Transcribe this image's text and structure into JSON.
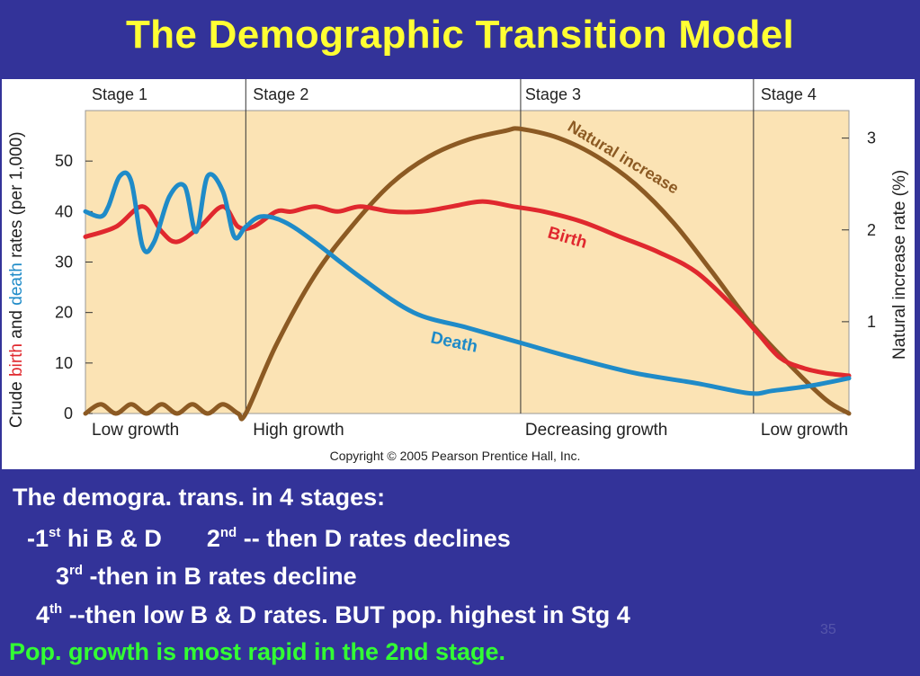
{
  "slide": {
    "title": "The Demographic Transition Model",
    "bullets": {
      "b1": "The demogra. trans. in 4 stages:",
      "b2a": "-1",
      "b2a_sup": "st",
      "b2b": " hi B & D",
      "b2c": "2",
      "b2c_sup": "nd",
      "b2d": " -- then D rates declines",
      "b3a": "3",
      "b3a_sup": "rd",
      "b3b": " -then in B rates decline",
      "b4a": "4",
      "b4a_sup": "th",
      "b4b": " --then  low B & D rates.   BUT pop. highest in Stg 4",
      "b5": "Pop. growth is most rapid in the 2nd stage."
    },
    "slide_number": "35",
    "colors": {
      "background": "#333399",
      "title": "#ffff33",
      "highlight": "#33ff33",
      "plot_bg": "#fbe3b4",
      "birth": "#e0282e",
      "death": "#1f8bc8",
      "natural_increase": "#8c5a23"
    }
  },
  "chart_data": {
    "type": "line",
    "stages": [
      "Stage 1",
      "Stage 2",
      "Stage 3",
      "Stage 4"
    ],
    "growth_labels": [
      "Low growth",
      "High growth",
      "Decreasing growth",
      "Low growth"
    ],
    "copyright": "Copyright © 2005 Pearson Prentice Hall, Inc.",
    "ylabel_left": {
      "part1": "Crude ",
      "birth": "birth",
      "part2": " and ",
      "death": "death",
      "part3": " rates (per 1,000)"
    },
    "ylabel_right": "Natural increase rate (%)",
    "ylim_left": [
      0,
      60
    ],
    "yticks_left": [
      0,
      10,
      20,
      30,
      40,
      50
    ],
    "ylim_right": [
      0,
      3.3
    ],
    "yticks_right": [
      1,
      2,
      3
    ],
    "x_range": [
      0,
      100
    ],
    "stage_boundaries": [
      21,
      57,
      87.5
    ],
    "series": [
      {
        "name": "Birth",
        "axis": "left",
        "x": [
          0,
          4,
          7.5,
          10,
          12,
          15,
          18,
          20,
          22,
          25,
          27,
          30,
          33,
          36,
          40,
          44,
          48,
          52,
          56,
          60,
          65,
          70,
          75,
          80,
          85,
          88,
          91,
          94,
          97,
          100
        ],
        "y": [
          35,
          37,
          41,
          36,
          34,
          37,
          41,
          37,
          37,
          40,
          40,
          41,
          40,
          41,
          40,
          40,
          41,
          42,
          41,
          40,
          38,
          35,
          32,
          28,
          21,
          16,
          11,
          9,
          8,
          7.5
        ]
      },
      {
        "name": "Death",
        "axis": "left",
        "x": [
          0,
          2,
          3,
          4.5,
          6,
          7.5,
          9,
          11,
          13,
          14.5,
          16,
          18,
          19.5,
          21,
          23,
          26,
          30,
          36,
          43,
          50,
          57,
          64,
          72,
          80,
          87,
          90,
          95,
          100
        ],
        "y": [
          40,
          39,
          41,
          47,
          46,
          33,
          34,
          43,
          45,
          36,
          47,
          44,
          35,
          37,
          39,
          38,
          34,
          27,
          20,
          17,
          14,
          11,
          8,
          6,
          4,
          4.5,
          5.5,
          7
        ]
      },
      {
        "name": "Natural increase",
        "axis": "right",
        "x": [
          0,
          2,
          4,
          6,
          8,
          10,
          12,
          14,
          16,
          18,
          20,
          21,
          25,
          30,
          35,
          40,
          45,
          50,
          55,
          57,
          62,
          67,
          72,
          77,
          82,
          87,
          92,
          97,
          100
        ],
        "y": [
          0,
          0.1,
          0,
          0.1,
          0,
          0.1,
          0,
          0.1,
          0,
          0.1,
          0,
          0,
          0.75,
          1.5,
          2.05,
          2.5,
          2.8,
          2.98,
          3.08,
          3.1,
          3.0,
          2.8,
          2.5,
          2.08,
          1.55,
          1.0,
          0.55,
          0.15,
          0
        ]
      }
    ],
    "series_labels": [
      "Natural increase",
      "Birth",
      "Death"
    ]
  }
}
